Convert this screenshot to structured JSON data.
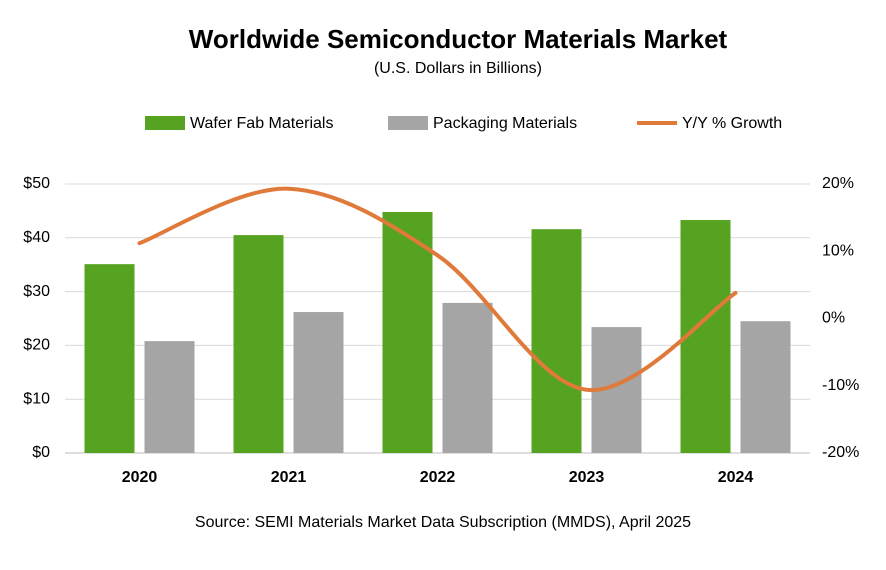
{
  "chart_data": {
    "type": "bar",
    "title": "Worldwide Semiconductor Materials Market",
    "subtitle": "(U.S. Dollars in Billions)",
    "source": "Source:  SEMI Materials Market Data Subscription (MMDS), April 2025",
    "categories": [
      "2020",
      "2021",
      "2022",
      "2023",
      "2024"
    ],
    "series": [
      {
        "name": "Wafer Fab Materials",
        "color": "#56a221",
        "type": "bar",
        "values": [
          35.1,
          40.5,
          44.8,
          41.6,
          43.3
        ]
      },
      {
        "name": "Packaging  Materials",
        "color": "#a5a5a5",
        "type": "bar",
        "values": [
          20.8,
          26.2,
          27.9,
          23.4,
          24.5
        ]
      },
      {
        "name": "Y/Y % Growth",
        "color": "#e07a3a",
        "type": "line",
        "axis": "y2",
        "values": [
          11.2,
          19.3,
          9.4,
          -10.6,
          3.8
        ]
      }
    ],
    "ylim": [
      0,
      50
    ],
    "yticks": [
      {
        "value": 0,
        "label": "$0"
      },
      {
        "value": 10,
        "label": "$10"
      },
      {
        "value": 20,
        "label": "$20"
      },
      {
        "value": 30,
        "label": "$30"
      },
      {
        "value": 40,
        "label": "$40"
      },
      {
        "value": 50,
        "label": "$50"
      }
    ],
    "y2lim": [
      -20,
      20
    ],
    "y2ticks": [
      {
        "value": -20,
        "label": "-20%"
      },
      {
        "value": -10,
        "label": "-10%"
      },
      {
        "value": 0,
        "label": "0%"
      },
      {
        "value": 10,
        "label": "10%"
      },
      {
        "value": 20,
        "label": "20%"
      }
    ],
    "grid": true,
    "legend": "top"
  }
}
